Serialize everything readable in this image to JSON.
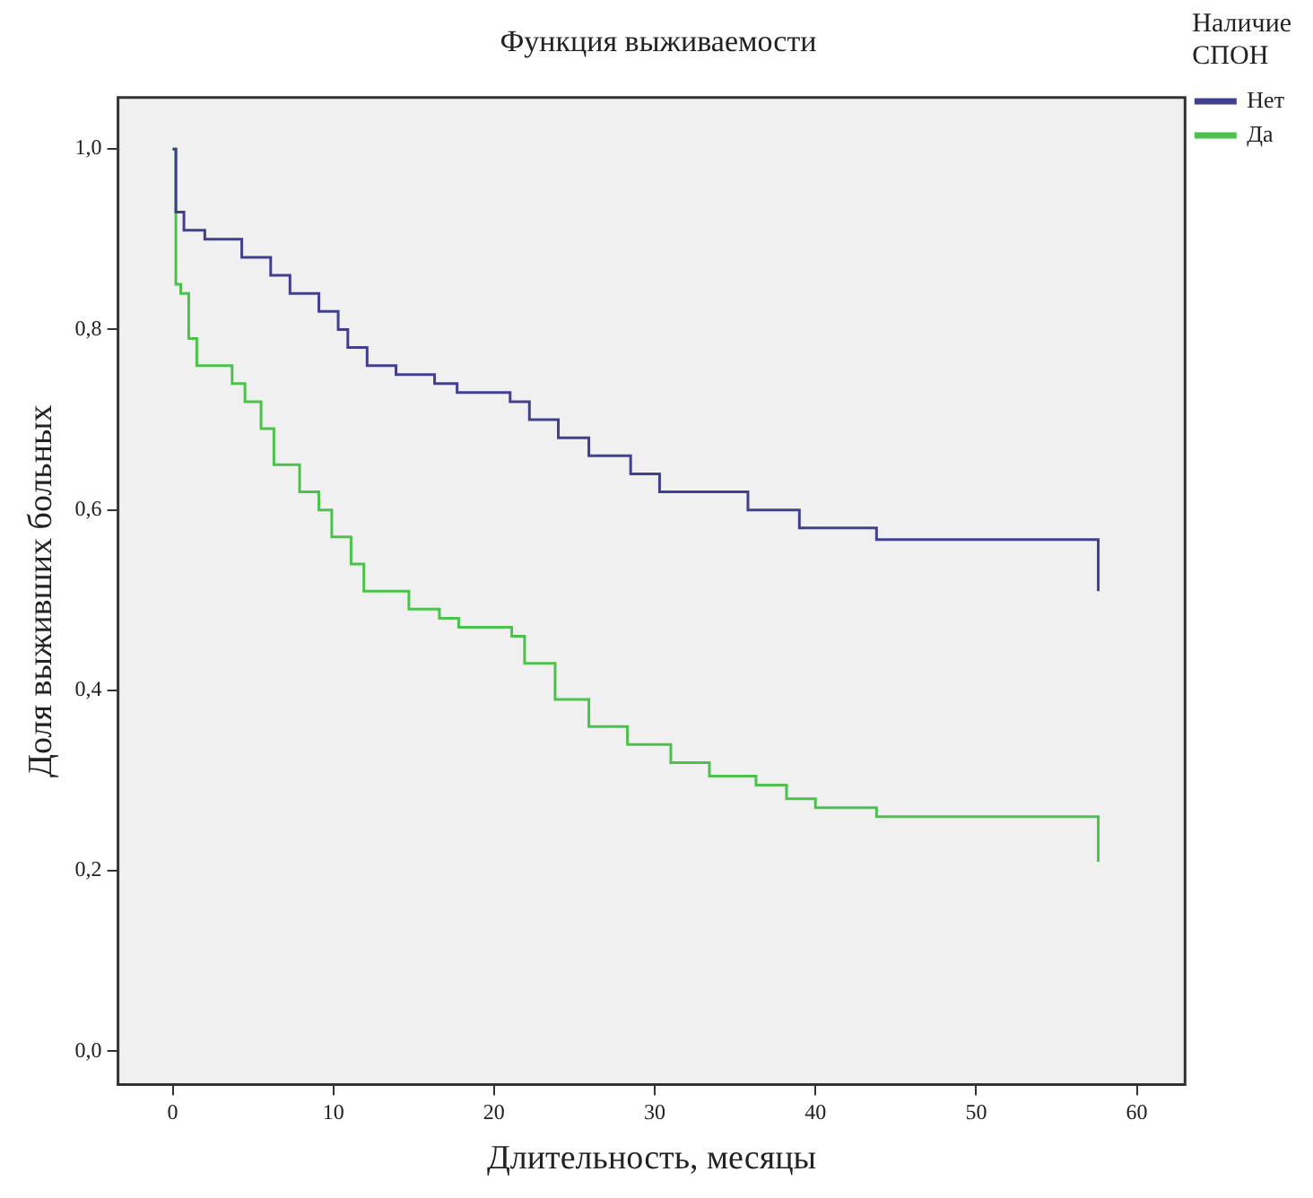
{
  "chart_data": {
    "type": "step",
    "title": "Функция выживаемости",
    "xlabel": "Длительность, месяцы",
    "ylabel": "Доля выживших больных",
    "legend_title": "Наличие СПОН",
    "legend": "top right",
    "grid": false,
    "marker": "none",
    "xlim": [
      -3.4,
      63
    ],
    "xticks": [
      0,
      10,
      20,
      30,
      40,
      50,
      60
    ],
    "ylim": [
      -0.037,
      1.057
    ],
    "yticks": [
      {
        "value": 0,
        "label": "0,0"
      },
      {
        "value": 0.2,
        "label": "0,2"
      },
      {
        "value": 0.4,
        "label": "0,4"
      },
      {
        "value": 0.6,
        "label": "0,6"
      },
      {
        "value": 0.8,
        "label": "0,8"
      },
      {
        "value": 1,
        "label": "1,0"
      }
    ],
    "series": [
      {
        "name": "Нет",
        "color": "#40408f",
        "x": [
          0,
          0.2,
          0.7,
          2,
          4.3,
          6.1,
          7.3,
          9.1,
          10.3,
          10.9,
          12.1,
          13.9,
          16.3,
          17.7,
          21,
          22.2,
          24,
          25.9,
          28.5,
          30.3,
          35.8,
          39,
          43.8,
          57.6
        ],
        "values": [
          1.0,
          0.93,
          0.91,
          0.9,
          0.88,
          0.86,
          0.84,
          0.82,
          0.8,
          0.78,
          0.76,
          0.75,
          0.74,
          0.73,
          0.72,
          0.7,
          0.68,
          0.66,
          0.64,
          0.62,
          0.6,
          0.58,
          0.567,
          0.51
        ]
      },
      {
        "name": "Да",
        "color": "#4cc24c",
        "x": [
          0,
          0.2,
          0.5,
          1,
          1.5,
          3.7,
          4.5,
          5.5,
          6.3,
          7.9,
          9.1,
          9.9,
          11.1,
          11.9,
          14.7,
          16.6,
          17.8,
          21.1,
          21.9,
          23.8,
          25.9,
          28.3,
          31,
          33.4,
          36.3,
          38.2,
          40,
          43.8,
          57.6
        ],
        "values": [
          1.0,
          0.85,
          0.84,
          0.79,
          0.76,
          0.74,
          0.72,
          0.69,
          0.65,
          0.62,
          0.6,
          0.57,
          0.54,
          0.51,
          0.49,
          0.48,
          0.47,
          0.46,
          0.43,
          0.39,
          0.36,
          0.34,
          0.32,
          0.305,
          0.295,
          0.28,
          0.27,
          0.26,
          0.21
        ]
      }
    ]
  }
}
